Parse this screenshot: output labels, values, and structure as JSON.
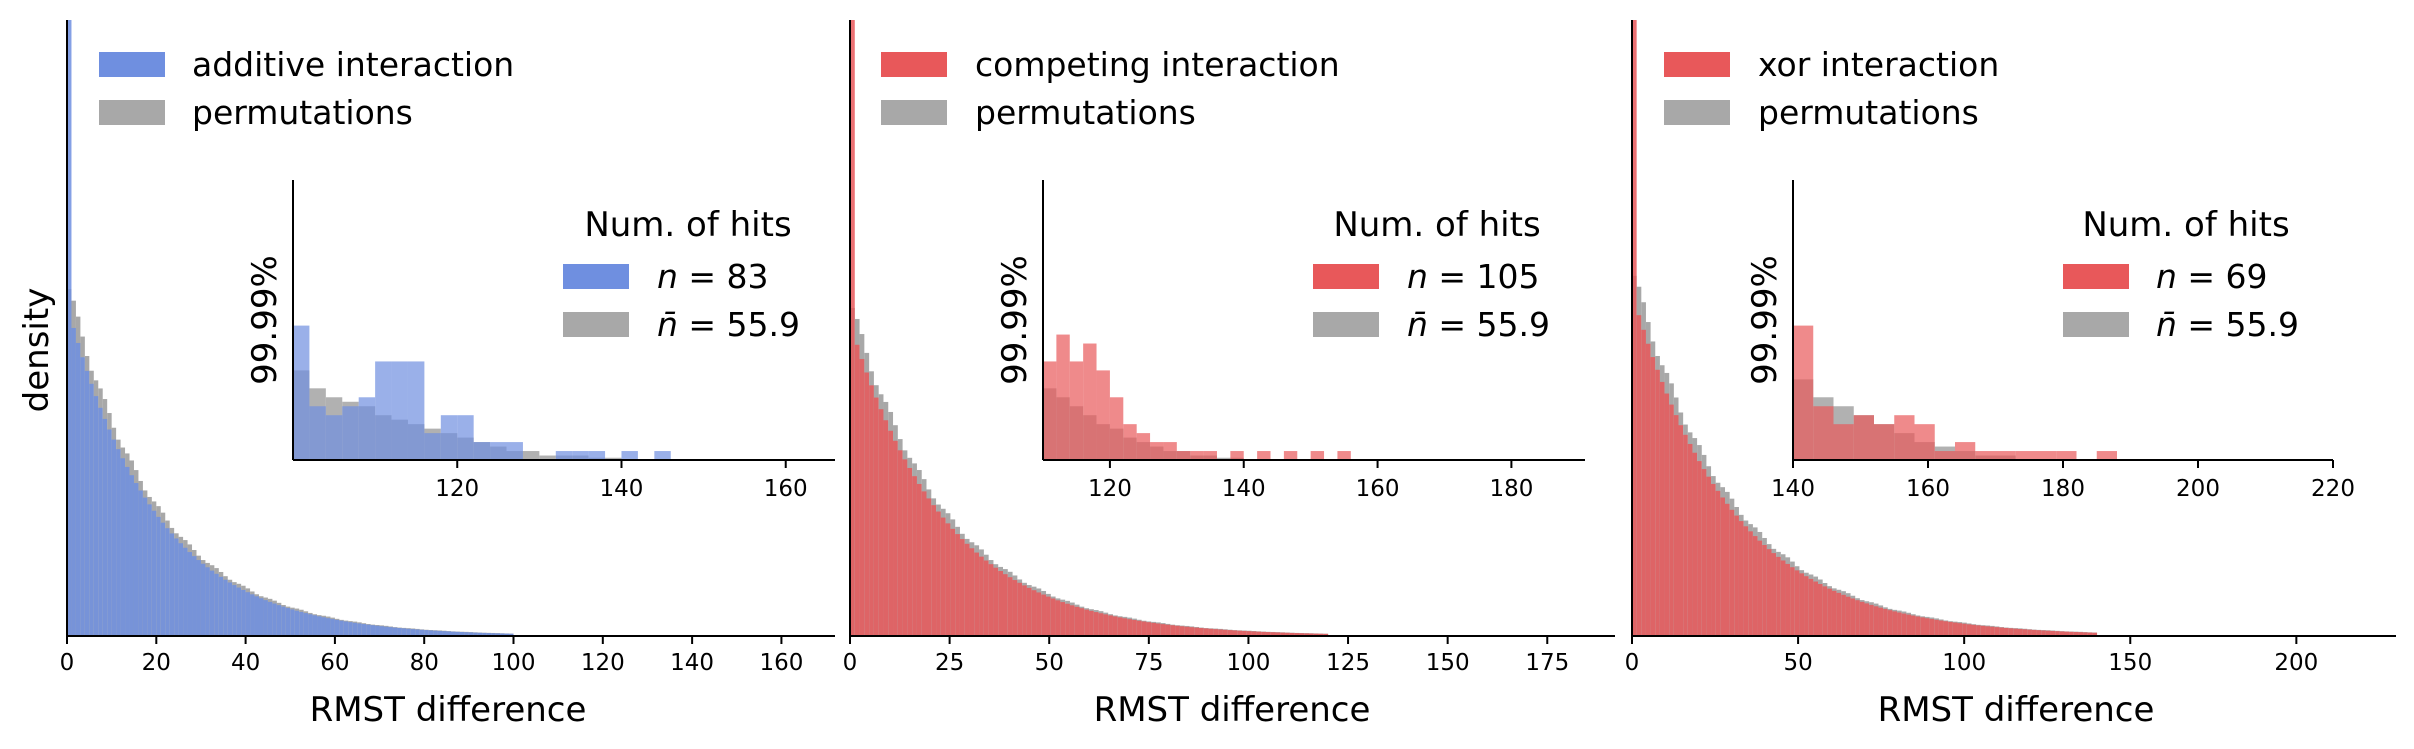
{
  "figure": {
    "ylabel": "density"
  },
  "colors": {
    "permutation": "#a8a8a8"
  },
  "chart_data": [
    {
      "type": "histogram",
      "xlabel": "RMST difference",
      "ylabel": "density",
      "xlim": [
        0,
        172
      ],
      "xticks": [
        "0",
        "20",
        "40",
        "60",
        "80",
        "100",
        "120",
        "140",
        "160"
      ],
      "xtick_values": [
        0,
        20,
        40,
        60,
        80,
        100,
        120,
        140,
        160
      ],
      "color": "#6f8fe0",
      "series": [
        {
          "name": "additive interaction",
          "x_range": [
            0,
            100
          ],
          "peak_density": 1.0,
          "decay_scale": 20
        },
        {
          "name": "permutations",
          "x_range": [
            0,
            100
          ],
          "peak_density": 0.55,
          "decay_scale": 20
        }
      ],
      "legend": [
        "additive interaction",
        "permutations"
      ],
      "inset": {
        "ylabel": "99.99%",
        "xlim": [
          100,
          166
        ],
        "xticks": [
          "120",
          "140",
          "160"
        ],
        "xtick_values": [
          120,
          140,
          160
        ],
        "bin_start": 100,
        "bin_width": 2,
        "title": "Num. of hits",
        "legend": [
          {
            "symbol": "n",
            "text": " = 83"
          },
          {
            "symbol": "n̄",
            "text": " = 55.9"
          }
        ],
        "hits": [
          0.3,
          0.12,
          0.1,
          0.12,
          0.14,
          0.22,
          0.22,
          0.22,
          0.06,
          0.1,
          0.1,
          0.04,
          0.04,
          0.04,
          0,
          0,
          0.02,
          0.02,
          0.02,
          0,
          0.02,
          0,
          0.02,
          0
        ],
        "perm": [
          0.2,
          0.16,
          0.14,
          0.13,
          0.12,
          0.1,
          0.09,
          0.08,
          0.07,
          0.06,
          0.05,
          0.04,
          0.03,
          0.02,
          0.02,
          0.01,
          0.01,
          0.01,
          0.005,
          0.005,
          0,
          0,
          0,
          0
        ]
      }
    },
    {
      "type": "histogram",
      "xlabel": "RMST difference",
      "ylabel": "",
      "xlim": [
        0,
        192
      ],
      "xticks": [
        "0",
        "25",
        "50",
        "75",
        "100",
        "125",
        "150",
        "175"
      ],
      "xtick_values": [
        0,
        25,
        50,
        75,
        100,
        125,
        150,
        175
      ],
      "color": "#e8585a",
      "series": [
        {
          "name": "competing interaction",
          "x_range": [
            0,
            120
          ],
          "peak_density": 1.0,
          "decay_scale": 24
        },
        {
          "name": "permutations",
          "x_range": [
            0,
            120
          ],
          "peak_density": 0.52,
          "decay_scale": 24
        }
      ],
      "legend": [
        "competing interaction",
        "permutations"
      ],
      "inset": {
        "ylabel": "99.99%",
        "xlim": [
          110,
          191
        ],
        "xticks": [
          "120",
          "140",
          "160",
          "180"
        ],
        "xtick_values": [
          120,
          140,
          160,
          180
        ],
        "bin_start": 110,
        "bin_width": 2,
        "title": "Num. of hits",
        "legend": [
          {
            "symbol": "n",
            "text": " = 105"
          },
          {
            "symbol": "n̄",
            "text": " = 55.9"
          }
        ],
        "hits": [
          0.22,
          0.28,
          0.22,
          0.26,
          0.2,
          0.14,
          0.08,
          0.06,
          0.04,
          0.04,
          0.02,
          0.02,
          0.02,
          0,
          0.02,
          0,
          0.02,
          0,
          0.02,
          0,
          0.02,
          0,
          0.02,
          0,
          0,
          0,
          0
        ],
        "perm": [
          0.16,
          0.14,
          0.12,
          0.1,
          0.08,
          0.07,
          0.05,
          0.04,
          0.03,
          0.02,
          0.02,
          0.01,
          0.01,
          0.005,
          0.005,
          0,
          0,
          0,
          0,
          0,
          0,
          0,
          0,
          0,
          0,
          0,
          0
        ]
      }
    },
    {
      "type": "histogram",
      "xlabel": "RMST difference",
      "ylabel": "",
      "xlim": [
        0,
        230
      ],
      "xticks": [
        "0",
        "50",
        "100",
        "150",
        "200"
      ],
      "xtick_values": [
        0,
        50,
        100,
        150,
        200
      ],
      "color": "#e8585a",
      "series": [
        {
          "name": "xor interaction",
          "x_range": [
            0,
            140
          ],
          "peak_density": 1.0,
          "decay_scale": 30
        },
        {
          "name": "permutations",
          "x_range": [
            0,
            140
          ],
          "peak_density": 0.57,
          "decay_scale": 30
        }
      ],
      "legend": [
        "xor interaction",
        "permutations"
      ],
      "inset": {
        "ylabel": "99.99%",
        "xlim": [
          140,
          220
        ],
        "xticks": [
          "140",
          "160",
          "180",
          "200",
          "220"
        ],
        "xtick_values": [
          140,
          160,
          180,
          200,
          220
        ],
        "bin_start": 140,
        "bin_width": 3,
        "title": "Num. of hits",
        "legend": [
          {
            "symbol": "n",
            "text": " = 69"
          },
          {
            "symbol": "n̄",
            "text": " = 55.9"
          }
        ],
        "hits": [
          0.3,
          0.12,
          0.08,
          0.1,
          0.08,
          0.1,
          0.08,
          0.02,
          0.04,
          0.02,
          0.02,
          0.02,
          0.02,
          0.02,
          0,
          0.02,
          0
        ],
        "perm": [
          0.18,
          0.14,
          0.12,
          0.1,
          0.08,
          0.06,
          0.04,
          0.03,
          0.02,
          0.01,
          0.01,
          0,
          0,
          0,
          0,
          0,
          0
        ]
      }
    }
  ]
}
